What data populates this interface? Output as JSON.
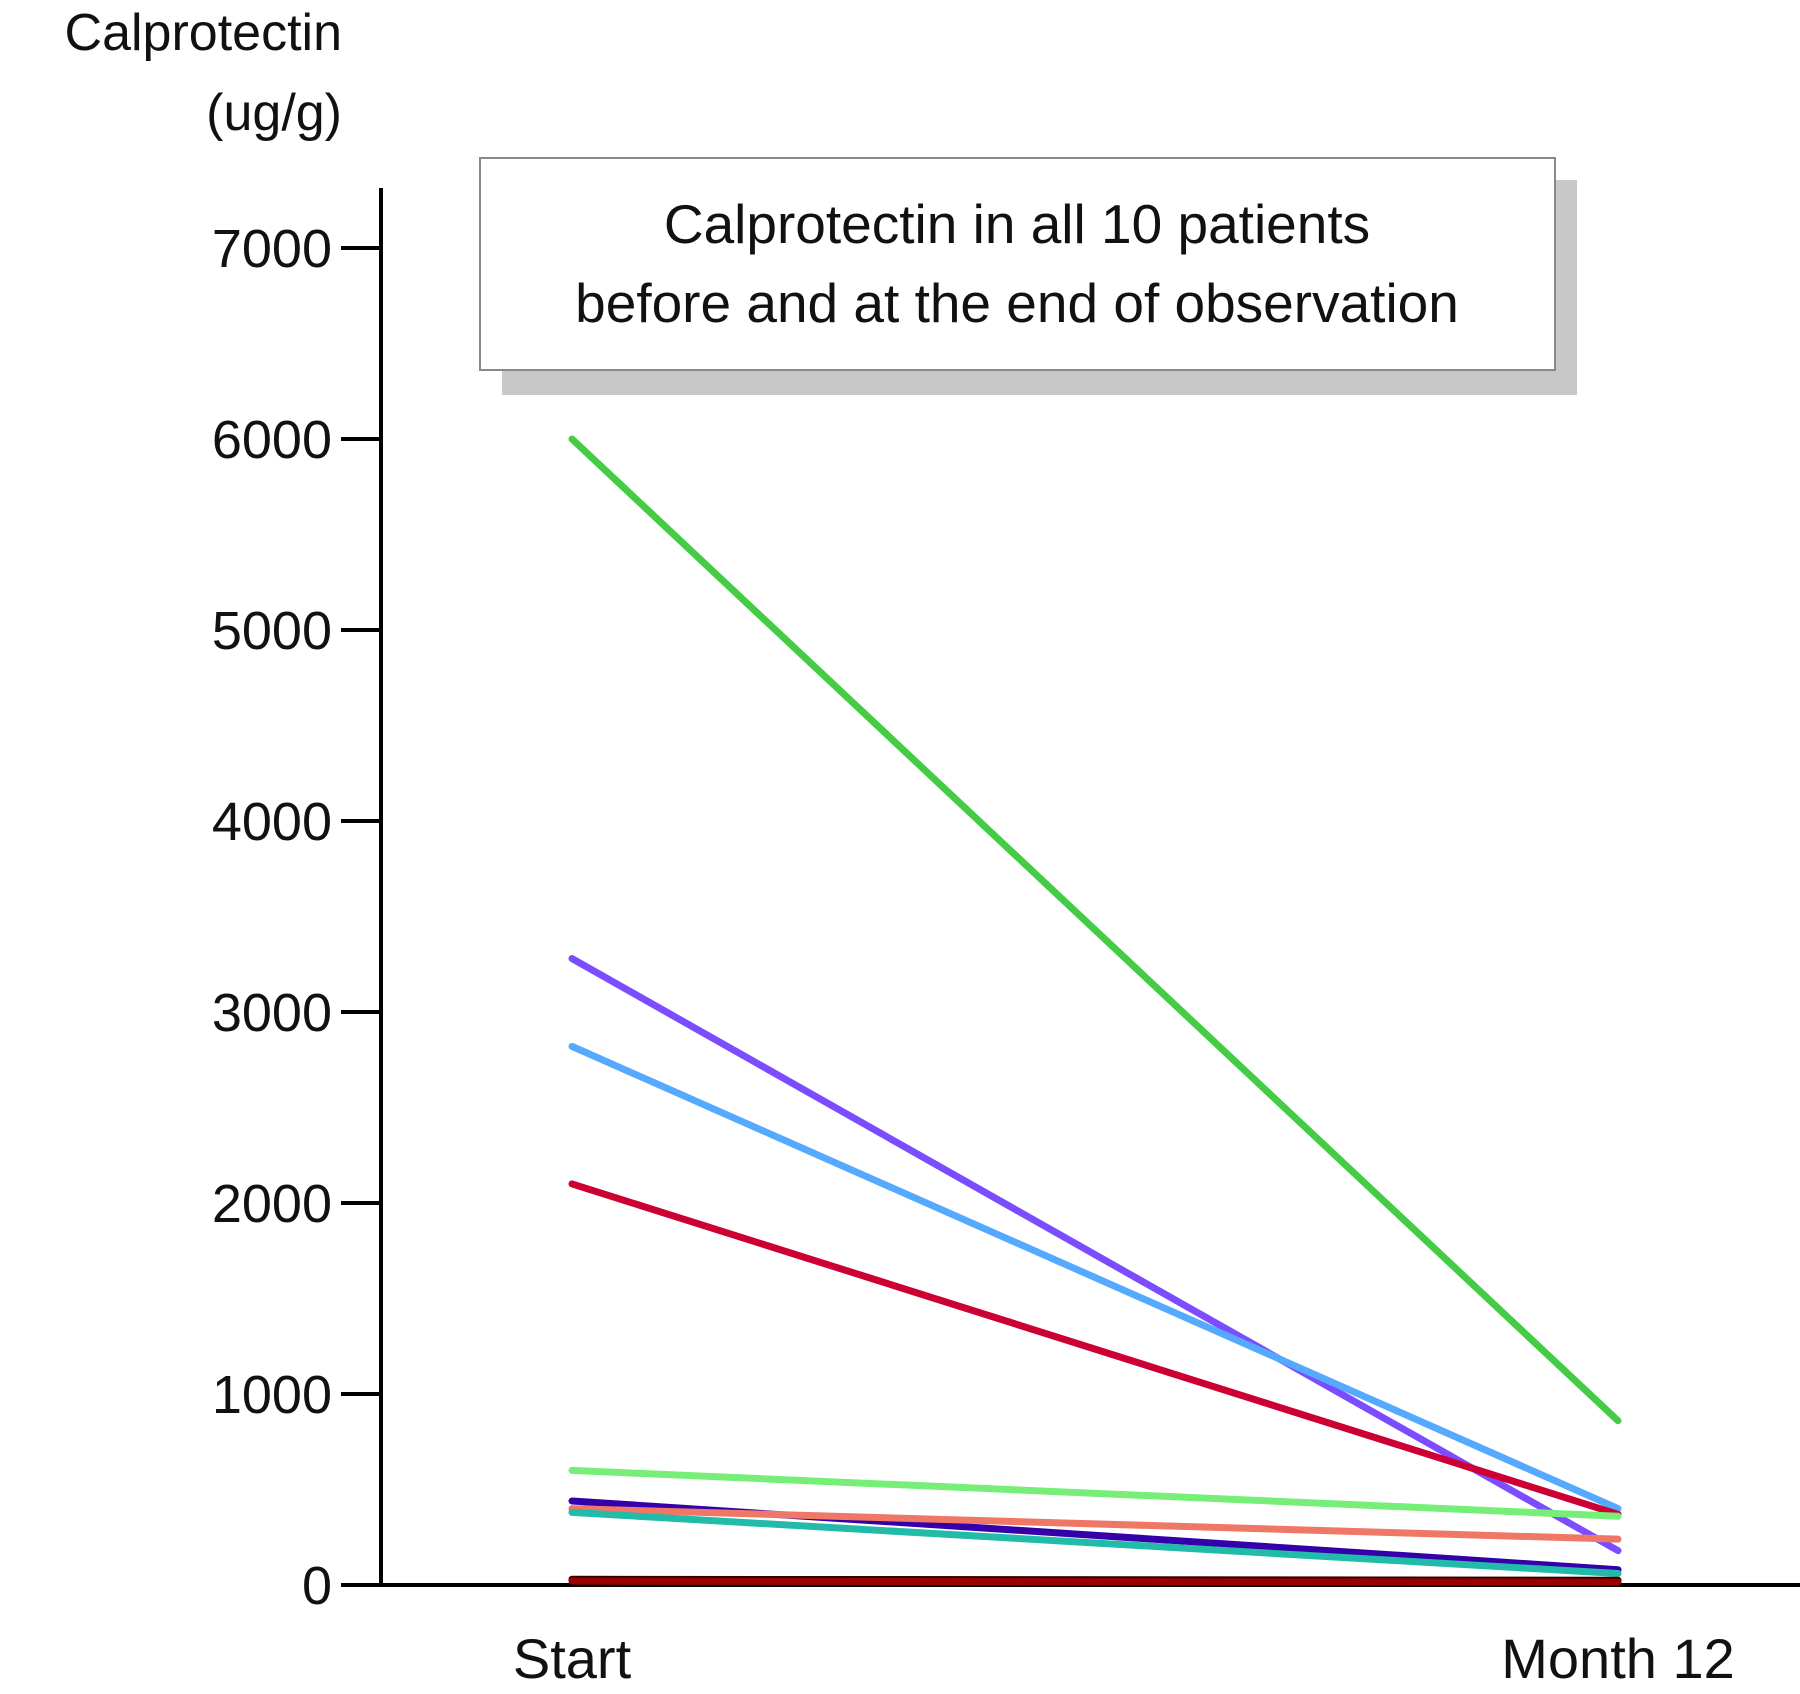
{
  "chart_data": {
    "type": "line",
    "title_lines": [
      "Calprotectin in all 10 patients",
      "before and at the end of observation"
    ],
    "ylabel_lines": [
      "Calprotectin",
      "(ug/g)"
    ],
    "categories": [
      "Start",
      "Month 12"
    ],
    "ylim": [
      0,
      7300
    ],
    "yticks": [
      0,
      1000,
      2000,
      3000,
      4000,
      5000,
      6000,
      7000
    ],
    "ytick_labels": [
      "0",
      "1000",
      "2000",
      "3000",
      "4000",
      "5000",
      "6000",
      "7000"
    ],
    "grid": false,
    "series": [
      {
        "values": [
          6000,
          860
        ],
        "color": "#44cc44"
      },
      {
        "values": [
          3280,
          180
        ],
        "color": "#7b4dff"
      },
      {
        "values": [
          2820,
          400
        ],
        "color": "#55aaff"
      },
      {
        "values": [
          2100,
          370
        ],
        "color": "#cc0033"
      },
      {
        "values": [
          600,
          360
        ],
        "color": "#77ee77"
      },
      {
        "values": [
          440,
          80
        ],
        "color": "#3300aa"
      },
      {
        "values": [
          400,
          240
        ],
        "color": "#ee7766"
      },
      {
        "values": [
          380,
          60
        ],
        "color": "#22bbaa"
      },
      {
        "values": [
          30,
          25
        ],
        "color": "#330000"
      },
      {
        "values": [
          20,
          15
        ],
        "color": "#990000"
      }
    ]
  }
}
